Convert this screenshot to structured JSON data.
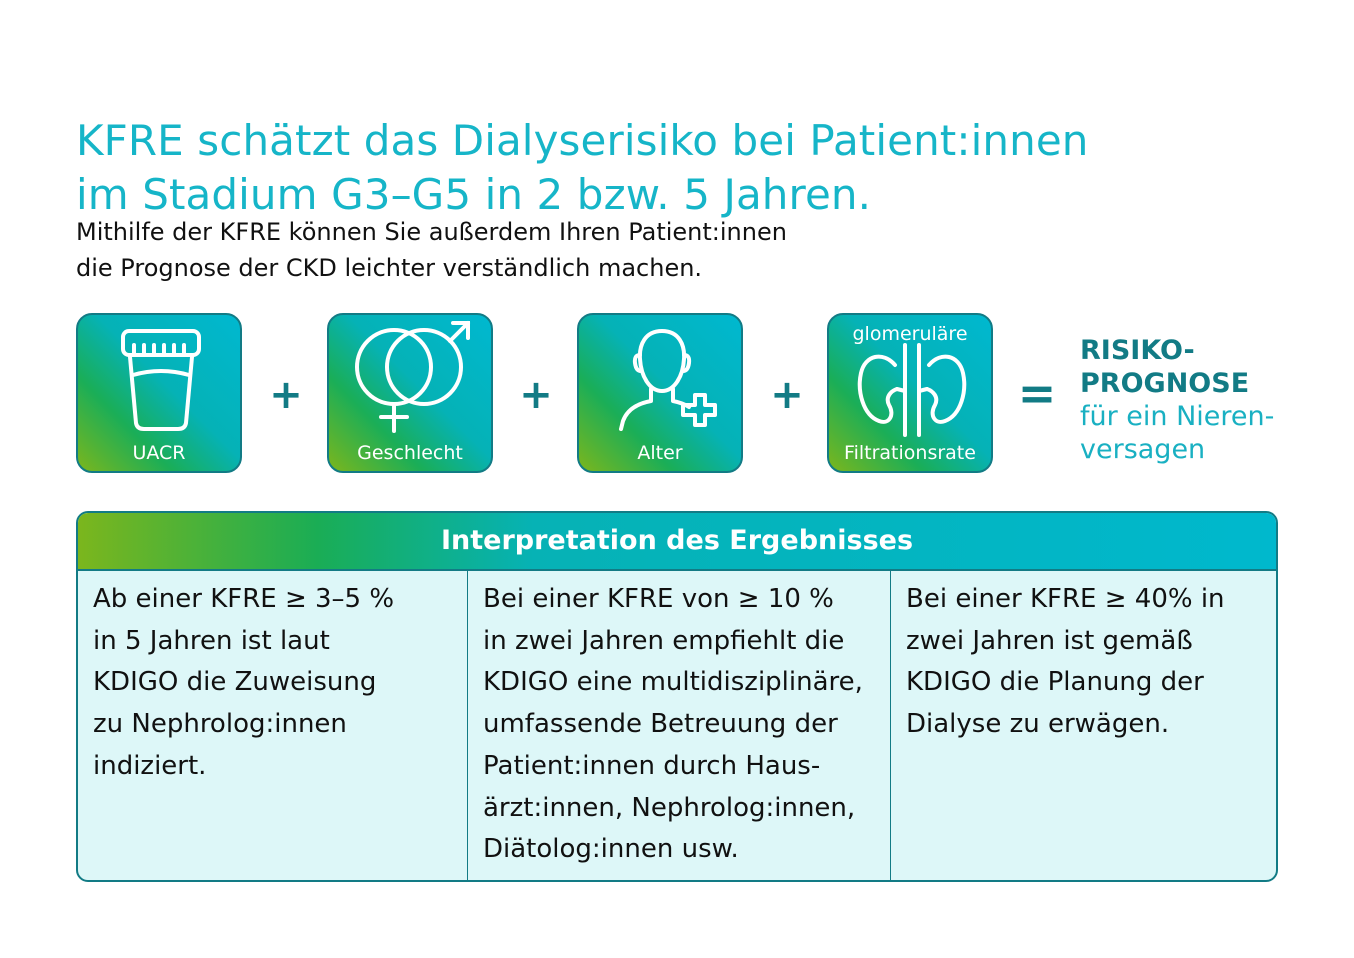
{
  "header": {
    "title_line1": "KFRE schätzt das Dialyserisiko bei Patient:innen",
    "title_line2": "im Stadium G3–G5 in 2 bzw. 5 Jahren.",
    "subtitle_line1": "Mithilfe der KFRE können Sie außerdem Ihren Patient:innen",
    "subtitle_line2": "die Prognose der CKD leichter verständlich machen."
  },
  "formula": {
    "tiles": [
      {
        "icon": "urine-cup-icon",
        "label": "UACR"
      },
      {
        "icon": "gender-symbols-icon",
        "label": "Geschlecht"
      },
      {
        "icon": "person-plus-icon",
        "label": "Alter"
      },
      {
        "icon": "kidneys-icon",
        "top_label": "glomeruläre",
        "label": "Filtrationsrate"
      }
    ],
    "plus": "+",
    "equals": "=",
    "result_line1": "RISIKO-",
    "result_line2": "PROGNOSE",
    "result_line3": "für ein Nieren-",
    "result_line4": "versagen"
  },
  "interpretation": {
    "title": "Interpretation des Ergebnisses",
    "columns": [
      [
        "Ab einer KFRE ≥ 3–5 %",
        "in 5 Jahren ist laut",
        "KDIGO die Zuweisung",
        "zu Nephrolog:innen",
        "indiziert."
      ],
      [
        "Bei einer KFRE von ≥ 10 %",
        "in zwei Jahren empfiehlt die",
        "KDIGO eine multidisziplinäre,",
        "umfassende Betreuung der",
        "Patient:innen durch Haus-",
        "ärzt:innen, Nephrolog:innen,",
        "Diätolog:innen usw."
      ],
      [
        "Bei einer KFRE ≥ 40% in",
        "zwei Jahren ist gemäß",
        "KDIGO die Planung der",
        "Dialyse zu erwägen."
      ]
    ]
  },
  "colors": {
    "accent_teal": "#16b5c8",
    "dark_teal": "#127b85",
    "gradient_green": "#7bb61d",
    "cell_bg": "#ddf7f8"
  }
}
